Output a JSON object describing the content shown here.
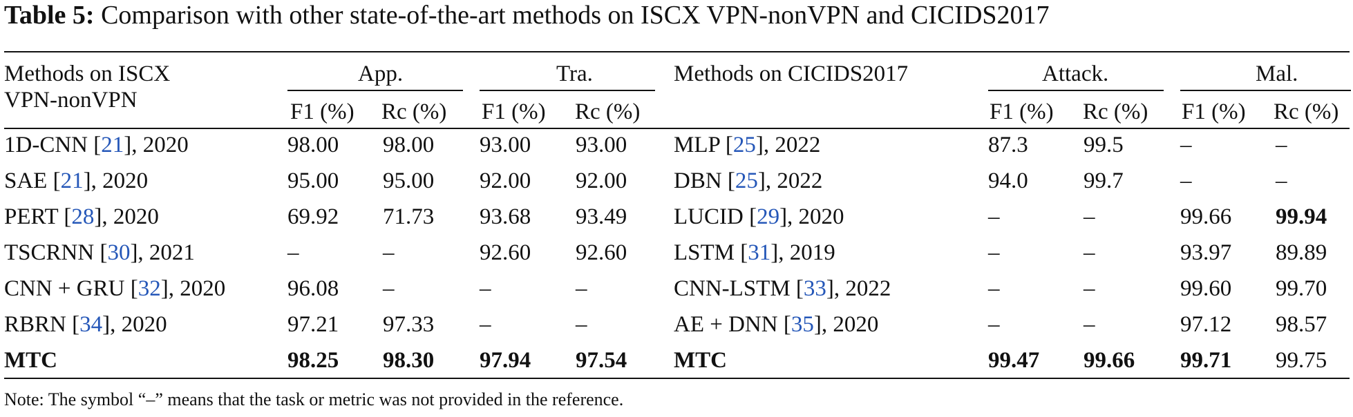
{
  "caption": {
    "label": "Table 5:",
    "text": " Comparison with other state-of-the-art methods on ISCX VPN-nonVPN and CICIDS2017"
  },
  "headers": {
    "left_method_line1": "Methods on ISCX",
    "left_method_line2": "VPN-nonVPN",
    "app": "App.",
    "tra": "Tra.",
    "right_method": "Methods on CICIDS2017",
    "attack": "Attack.",
    "mal": "Mal.",
    "f1": "F1 (%)",
    "rc": "Rc (%)"
  },
  "rows": [
    {
      "lm": {
        "pre": "1D-CNN [",
        "ref": "21",
        "post": "], 2020"
      },
      "lv": [
        "98.00",
        "98.00",
        "93.00",
        "93.00"
      ],
      "rm": {
        "pre": "MLP [",
        "ref": "25",
        "post": "], 2022"
      },
      "rv": [
        "87.3",
        "99.5",
        "–",
        "–"
      ]
    },
    {
      "lm": {
        "pre": "SAE [",
        "ref": "21",
        "post": "], 2020"
      },
      "lv": [
        "95.00",
        "95.00",
        "92.00",
        "92.00"
      ],
      "rm": {
        "pre": "DBN [",
        "ref": "25",
        "post": "], 2022"
      },
      "rv": [
        "94.0",
        "99.7",
        "–",
        "–"
      ]
    },
    {
      "lm": {
        "pre": "PERT [",
        "ref": "28",
        "post": "], 2020"
      },
      "lv": [
        "69.92",
        "71.73",
        "93.68",
        "93.49"
      ],
      "rm": {
        "pre": "LUCID [",
        "ref": "29",
        "post": "], 2020"
      },
      "rv": [
        "–",
        "–",
        "99.66",
        "99.94"
      ]
    },
    {
      "lm": {
        "pre": "TSCRNN [",
        "ref": "30",
        "post": "], 2021"
      },
      "lv": [
        "–",
        "–",
        "92.60",
        "92.60"
      ],
      "rm": {
        "pre": "LSTM [",
        "ref": "31",
        "post": "], 2019"
      },
      "rv": [
        "–",
        "–",
        "93.97",
        "89.89"
      ]
    },
    {
      "lm": {
        "pre": "CNN + GRU [",
        "ref": "32",
        "post": "], 2020"
      },
      "lv": [
        "96.08",
        "–",
        "–",
        "–"
      ],
      "rm": {
        "pre": "CNN-LSTM [",
        "ref": "33",
        "post": "], 2022"
      },
      "rv": [
        "–",
        "–",
        "99.60",
        "99.70"
      ]
    },
    {
      "lm": {
        "pre": "RBRN [",
        "ref": "34",
        "post": "], 2020"
      },
      "lv": [
        "97.21",
        "97.33",
        "–",
        "–"
      ],
      "rm": {
        "pre": "AE + DNN [",
        "ref": "35",
        "post": "], 2020"
      },
      "rv": [
        "–",
        "–",
        "97.12",
        "98.57"
      ]
    },
    {
      "lm": {
        "pre": "MTC",
        "ref": "",
        "post": ""
      },
      "lv": [
        "98.25",
        "98.30",
        "97.94",
        "97.54"
      ],
      "rm": {
        "pre": "MTC",
        "ref": "",
        "post": ""
      },
      "rv": [
        "99.47",
        "99.66",
        "99.71",
        "99.75"
      ]
    }
  ],
  "note": "Note: The symbol “–” means that the task or metric was not provided in the reference."
}
